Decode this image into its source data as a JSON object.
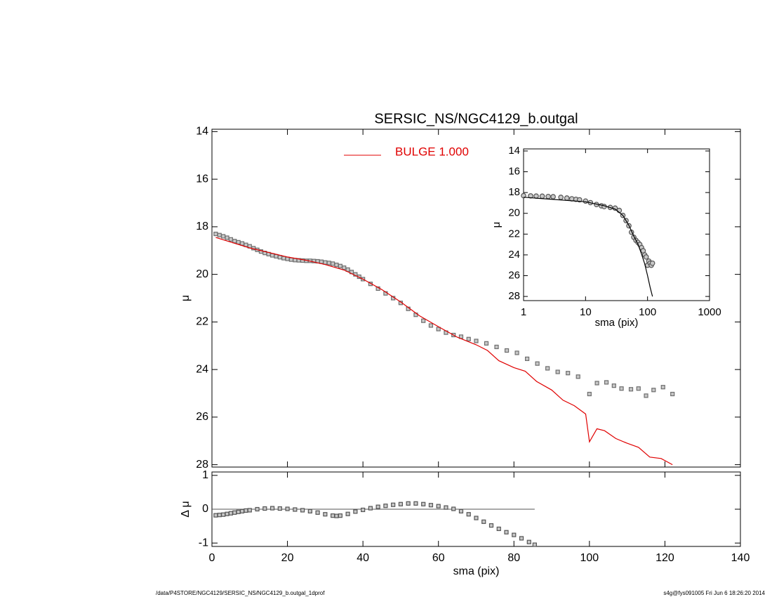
{
  "chart_data": [
    {
      "type": "scatter",
      "title": "SERSIC_NS/NGC4129_b.outgal",
      "y_label": "μ",
      "xlim": [
        0,
        140
      ],
      "xticks": [
        0,
        20,
        40,
        60,
        80,
        100,
        120,
        140
      ],
      "ylim": [
        28.1,
        13.9
      ],
      "yticks": [
        14,
        16,
        18,
        20,
        22,
        24,
        26,
        28
      ],
      "series": [
        {
          "color": "#6e6e6e",
          "marker": "square",
          "x": [
            1,
            2,
            3,
            4,
            5,
            6,
            7,
            8,
            9,
            10,
            11,
            12,
            13,
            14,
            15,
            16,
            17,
            18,
            19,
            20,
            21,
            22,
            23,
            24,
            25,
            26,
            27,
            28,
            29,
            30,
            31,
            32,
            33,
            34,
            35,
            36,
            37,
            38,
            39,
            40,
            42,
            44,
            46,
            48,
            50,
            52,
            54,
            56,
            58,
            60,
            62,
            64,
            66,
            68,
            70,
            72.7,
            75.4,
            78.1,
            80.8,
            83.5,
            86.2,
            88.9,
            91.6,
            94.3,
            97,
            100,
            102,
            104.5,
            106.5,
            108.5,
            111,
            113,
            115,
            117,
            119.5,
            122
          ],
          "values": [
            18.3,
            18.35,
            18.4,
            18.46,
            18.53,
            18.6,
            18.65,
            18.7,
            18.76,
            18.82,
            18.9,
            18.97,
            19.04,
            19.1,
            19.15,
            19.2,
            19.24,
            19.28,
            19.32,
            19.35,
            19.38,
            19.4,
            19.41,
            19.42,
            19.43,
            19.43,
            19.44,
            19.45,
            19.47,
            19.5,
            19.52,
            19.55,
            19.6,
            19.65,
            19.72,
            19.8,
            19.9,
            20.0,
            20.1,
            20.2,
            20.4,
            20.6,
            20.8,
            21.0,
            21.2,
            21.45,
            21.7,
            21.95,
            22.15,
            22.3,
            22.45,
            22.55,
            22.62,
            22.72,
            22.8,
            22.9,
            23.05,
            23.2,
            23.3,
            23.55,
            23.75,
            23.95,
            24.1,
            24.15,
            24.3,
            25.03,
            24.57,
            24.54,
            24.68,
            24.8,
            24.83,
            24.8,
            25.1,
            24.86,
            24.74,
            25.03
          ]
        },
        {
          "name": "BULGE  1.000",
          "color": "#e00000",
          "marker": "line",
          "x": [
            1,
            10,
            20,
            25,
            30,
            35,
            40,
            45,
            50,
            55,
            60,
            65,
            70,
            73,
            76,
            80,
            83,
            86,
            90,
            93,
            96,
            99,
            100,
            102,
            104,
            107,
            110,
            113,
            116,
            119,
            122
          ],
          "values": [
            18.45,
            18.89,
            19.27,
            19.41,
            19.59,
            19.82,
            20.2,
            20.64,
            21.16,
            21.74,
            22.2,
            22.64,
            22.96,
            23.2,
            23.63,
            23.92,
            24.07,
            24.5,
            24.86,
            25.29,
            25.52,
            25.87,
            27.04,
            26.49,
            26.57,
            26.9,
            27.1,
            27.27,
            27.68,
            27.74,
            28.0
          ]
        }
      ]
    },
    {
      "type": "scatter",
      "x_label": "sma (pix)",
      "y_label": "Δ μ",
      "xlim": [
        0,
        140
      ],
      "xticks": [
        0,
        20,
        40,
        60,
        80,
        100,
        120,
        140
      ],
      "ylim": [
        -1.1,
        1.1
      ],
      "yticks": [
        -1,
        0,
        1
      ],
      "series": [
        {
          "color": "#555555",
          "marker": "square",
          "x": [
            1,
            2,
            3,
            4,
            5,
            6,
            7,
            8,
            9,
            10,
            12,
            14,
            16,
            18,
            20,
            22,
            24,
            26,
            28,
            30,
            32,
            33,
            34,
            36,
            38,
            40,
            42,
            44,
            46,
            48,
            50,
            52,
            54,
            56,
            58,
            60,
            62,
            64,
            66,
            68,
            70,
            72,
            74,
            76,
            78,
            80,
            82,
            84,
            85.5
          ],
          "values": [
            -0.18,
            -0.17,
            -0.16,
            -0.14,
            -0.12,
            -0.1,
            -0.08,
            -0.06,
            -0.04,
            -0.03,
            0.0,
            0.02,
            0.03,
            0.02,
            0.01,
            -0.01,
            -0.03,
            -0.06,
            -0.1,
            -0.15,
            -0.19,
            -0.2,
            -0.19,
            -0.14,
            -0.07,
            -0.02,
            0.03,
            0.07,
            0.1,
            0.13,
            0.15,
            0.17,
            0.17,
            0.15,
            0.12,
            0.09,
            0.05,
            0.01,
            -0.06,
            -0.15,
            -0.26,
            -0.37,
            -0.48,
            -0.58,
            -0.68,
            -0.76,
            -0.86,
            -0.97,
            -1.05
          ]
        }
      ]
    },
    {
      "type": "scatter",
      "x_label": "sma (pix)",
      "y_label": "μ",
      "xlog": true,
      "xlim": [
        1,
        1000
      ],
      "xticks": [
        1,
        10,
        100,
        1000
      ],
      "ylim": [
        28.4,
        13.8
      ],
      "yticks": [
        14,
        16,
        18,
        20,
        22,
        24,
        26,
        28
      ],
      "series": [
        {
          "color": "#555555",
          "marker": "circle",
          "x": [
            1,
            1.3,
            1.6,
            2,
            2.5,
            3,
            4,
            5,
            6,
            7,
            8,
            10,
            12,
            15,
            18,
            20,
            25,
            30,
            35,
            40,
            45,
            50,
            55,
            60,
            65,
            70,
            75,
            80,
            85,
            90,
            95,
            100,
            105,
            110,
            115,
            120
          ],
          "values": [
            18.3,
            18.32,
            18.34,
            18.35,
            18.38,
            18.4,
            18.46,
            18.53,
            18.6,
            18.65,
            18.7,
            18.82,
            18.97,
            19.15,
            19.28,
            19.35,
            19.43,
            19.5,
            19.72,
            20.2,
            20.7,
            21.2,
            21.82,
            22.3,
            22.6,
            22.8,
            23.0,
            23.3,
            23.6,
            24.0,
            24.2,
            25.0,
            24.6,
            24.8,
            25.0,
            24.8
          ]
        },
        {
          "color": "#000000",
          "marker": "line",
          "x": [
            1,
            10,
            20,
            30,
            40,
            50,
            60,
            70,
            80,
            90,
            100,
            110,
            120
          ],
          "values": [
            18.45,
            18.89,
            19.27,
            19.59,
            20.2,
            21.16,
            22.2,
            22.96,
            23.92,
            24.86,
            26.0,
            27.1,
            28.0
          ]
        }
      ]
    }
  ],
  "footer": {
    "path": "/data/P4STORE/NGC4129/SERSIC_NS/NGC4129_b.outgal_1dprof",
    "stamp": "s4g@fys091005  Fri Jun  6 18:26:20 2014"
  }
}
